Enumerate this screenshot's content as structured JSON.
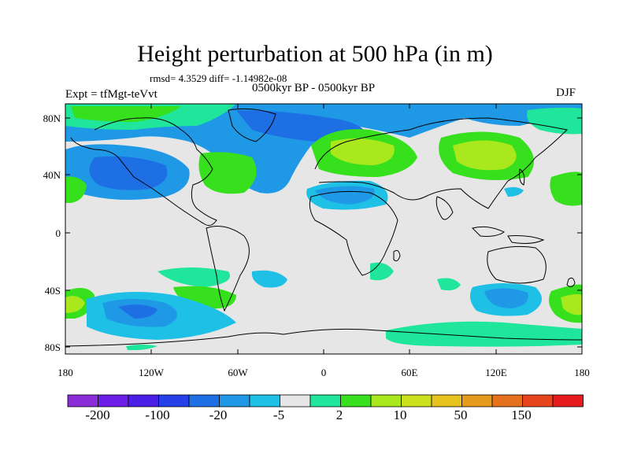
{
  "header": {
    "title": "Height perturbation at 500 hPa (in m)",
    "stats": "rmsd= 4.3529 diff= -1.14982e-08",
    "experiment": "Expt = tfMgt-teVvt",
    "period": "0500kyr BP - 0500kyr BP",
    "season": "DJF"
  },
  "axes": {
    "lat_ticks": [
      "80N",
      "40N",
      "0",
      "40S",
      "80S"
    ],
    "lon_ticks": [
      "180",
      "120W",
      "60W",
      "0",
      "60E",
      "120E",
      "180"
    ]
  },
  "colorbar": {
    "colors": [
      "#8c2bd8",
      "#6c1ee6",
      "#4b1fe6",
      "#2540e8",
      "#1f6fe4",
      "#1f99e6",
      "#1fc0e6",
      "#e6e6e6",
      "#1fe69a",
      "#36e01c",
      "#a8e81c",
      "#cde01c",
      "#e6c21c",
      "#e69a1c",
      "#e6711c",
      "#e6441c",
      "#e61c1c"
    ],
    "labels": [
      "-200",
      "-100",
      "-20",
      "-5",
      "2",
      "10",
      "50",
      "150"
    ]
  }
}
